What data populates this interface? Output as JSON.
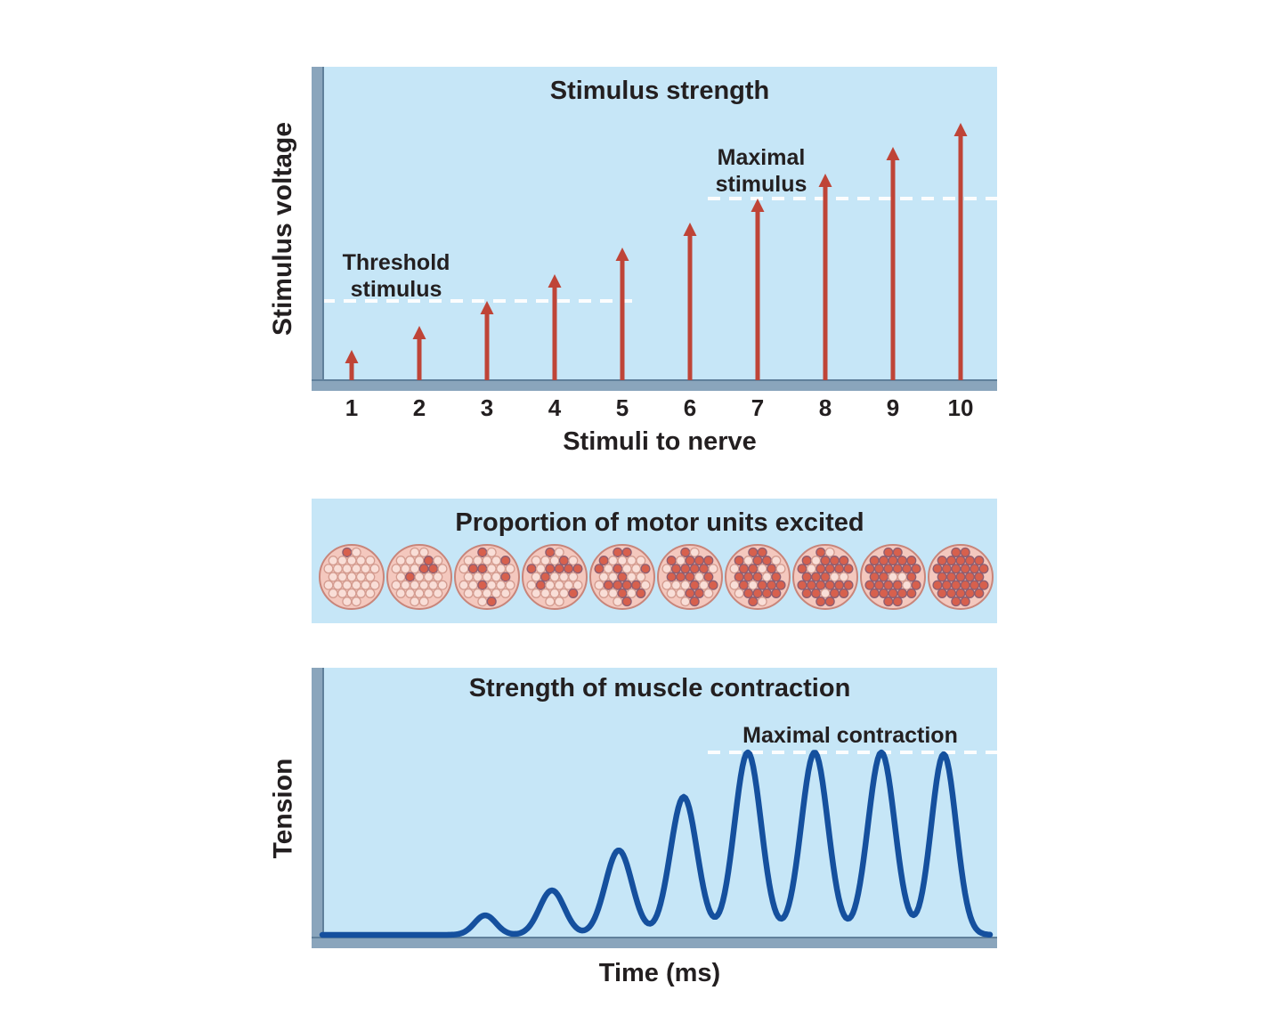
{
  "colors": {
    "panel_bg": "#c6e6f7",
    "axis_bar": "#8aa5bc",
    "axis_edge": "#60809b",
    "arrow": "#bf4437",
    "dashed": "#ffffff",
    "text": "#231f20",
    "curve": "#15509e",
    "unit_bg": "#f4c8be",
    "unit_stroke": "#c8857a",
    "fiber_light": "#f9ded7",
    "fiber_light_stroke": "#d49c90",
    "fiber_dark": "#d7604d",
    "fiber_dark_stroke": "#8d5e71"
  },
  "chart_data": [
    {
      "type": "bar",
      "marker": "arrow",
      "title": "Stimulus strength",
      "xlabel": "Stimuli to nerve",
      "ylabel": "Stimulus voltage",
      "categories": [
        "1",
        "2",
        "3",
        "4",
        "5",
        "6",
        "7",
        "8",
        "9",
        "10"
      ],
      "values": [
        35,
        62,
        90,
        120,
        150,
        178,
        205,
        233,
        263,
        290
      ],
      "ylim": [
        0,
        300
      ],
      "annotations": [
        {
          "label_lines": [
            "Threshold",
            "stimulus"
          ],
          "level": 90,
          "x_start": 12,
          "x_end": 360
        },
        {
          "label_lines": [
            "Maximal",
            "stimulus"
          ],
          "level": 205,
          "x_start": 445,
          "x_end": 770
        }
      ]
    },
    {
      "type": "pictogram",
      "title": "Proportion of motor units excited",
      "categories": [
        "1",
        "2",
        "3",
        "4",
        "5",
        "6",
        "7",
        "8",
        "9",
        "10"
      ],
      "values": [
        0.03,
        0.12,
        0.22,
        0.33,
        0.45,
        0.57,
        0.68,
        0.8,
        0.9,
        1.0
      ]
    },
    {
      "type": "line",
      "title": "Strength of muscle contraction",
      "xlabel": "Time (ms)",
      "ylabel": "Tension",
      "annotation": {
        "label": "Maximal contraction",
        "level": 205,
        "x_start": 445,
        "x_end": 770
      },
      "peaks": [
        {
          "x": 195,
          "amp": 22,
          "sigma": 12
        },
        {
          "x": 270,
          "amp": 50,
          "sigma": 14
        },
        {
          "x": 345,
          "amp": 95,
          "sigma": 15
        },
        {
          "x": 418,
          "amp": 155,
          "sigma": 15
        },
        {
          "x": 490,
          "amp": 205,
          "sigma": 15
        },
        {
          "x": 565,
          "amp": 205,
          "sigma": 15
        },
        {
          "x": 640,
          "amp": 205,
          "sigma": 15
        },
        {
          "x": 710,
          "amp": 203,
          "sigma": 14
        }
      ]
    }
  ]
}
